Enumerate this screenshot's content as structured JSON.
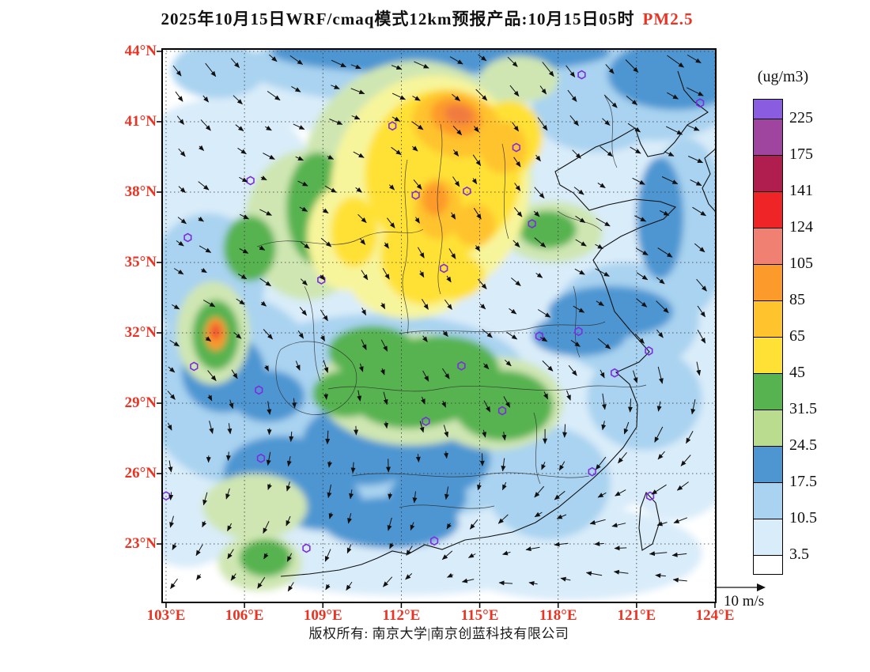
{
  "colors": {
    "accent_red": "#ea3323",
    "station_purple": "#7d2ce0",
    "map_border": "#000000"
  },
  "title": {
    "black_part": "2025年10月15日WRF/cmaq模式12km预报产品:10月15日05时",
    "red_part": "PM2.5"
  },
  "legend": {
    "unit": "(ug/m3)",
    "labels_top_to_bottom": [
      "225",
      "175",
      "141",
      "124",
      "105",
      "85",
      "65",
      "45",
      "31.5",
      "24.5",
      "17.5",
      "10.5",
      "3.5"
    ]
  },
  "axes": {
    "lat": {
      "values": [
        44,
        41,
        38,
        35,
        32,
        29,
        26,
        23
      ],
      "labels": [
        "44°N",
        "41°N",
        "38°N",
        "35°N",
        "32°N",
        "29°N",
        "26°N",
        "23°N"
      ]
    },
    "lon": {
      "values": [
        103,
        106,
        109,
        112,
        115,
        118,
        121,
        124
      ],
      "labels": [
        "103°E",
        "106°E",
        "109°E",
        "112°E",
        "115°E",
        "118°E",
        "121°E",
        "124°E"
      ]
    }
  },
  "wind_ref": {
    "label": "10 m/s"
  },
  "footer": {
    "text": "版权所有: 南京大学|南京创蓝科技有限公司"
  },
  "chart_data": {
    "type": "heatmap",
    "title": "2025年10月15日WRF/cmaq模式12km预报产品:10月15日05时 PM2.5",
    "variable": "PM2.5",
    "unit": "ug/m3",
    "forecast_time": "10月15日05时",
    "x_axis": {
      "label": "longitude",
      "suffix": "°E",
      "ticks_deg": [
        103,
        106,
        109,
        112,
        115,
        118,
        121,
        124
      ],
      "range_deg": [
        102.85,
        124.0
      ]
    },
    "y_axis": {
      "label": "latitude",
      "suffix": "°N",
      "ticks_deg": [
        44,
        41,
        38,
        35,
        32,
        29,
        26,
        23
      ],
      "range_deg": [
        20.5,
        44.1
      ]
    },
    "levels_ugm3": [
      3.5,
      10.5,
      17.5,
      24.5,
      31.5,
      45,
      65,
      85,
      105,
      124,
      141,
      175,
      225
    ],
    "palette_low_to_high": [
      "#ffffff",
      "#d9ecf9",
      "#a9d3f0",
      "#4e96d2",
      "#b9dc8e",
      "#57b34f",
      "#ffe135",
      "#ffc32e",
      "#fd9a2c",
      "#f08071",
      "#ee2426",
      "#b01e50",
      "#a0459f",
      "#8a5ce0"
    ],
    "wind_reference": "10 m/s",
    "legend_position": "right",
    "grid": "dotted graticule every 3 degrees",
    "field_regions": [
      [
        114.0,
        42.6,
        8.5,
        2.6,
        0,
        "#d9ecf9"
      ],
      [
        120.5,
        36.5,
        4.5,
        6.0,
        0,
        "#d9ecf9"
      ],
      [
        122.5,
        31.0,
        3.5,
        7.0,
        0,
        "#d9ecf9"
      ],
      [
        107.0,
        31.5,
        6.0,
        5.5,
        0,
        "#d9ecf9"
      ],
      [
        116.0,
        28.5,
        7.5,
        5.0,
        0,
        "#d9ecf9"
      ],
      [
        112.0,
        23.6,
        8.0,
        2.8,
        0,
        "#d9ecf9"
      ],
      [
        105.0,
        37.5,
        4.0,
        4.5,
        0,
        "#d9ecf9"
      ],
      [
        110.0,
        33.8,
        8.0,
        6.0,
        0,
        "#d9ecf9"
      ],
      [
        123.0,
        40.5,
        2.5,
        3.0,
        0,
        "#d9ecf9"
      ],
      [
        118.5,
        22.6,
        5.0,
        2.0,
        0,
        "#d9ecf9"
      ],
      [
        103.8,
        25.5,
        2.5,
        3.5,
        0,
        "#d9ecf9"
      ],
      [
        106.2,
        41.8,
        1.8,
        1.3,
        0,
        "#d9ecf9"
      ],
      [
        113.5,
        43.4,
        7.5,
        1.7,
        0,
        "#a9d3f0"
      ],
      [
        121.8,
        42.6,
        3.2,
        2.4,
        0,
        "#a9d3f0"
      ],
      [
        105.6,
        29.6,
        3.4,
        4.0,
        0,
        "#a9d3f0"
      ],
      [
        112.8,
        27.3,
        5.0,
        3.2,
        0,
        "#a9d3f0"
      ],
      [
        109.6,
        26.3,
        4.0,
        2.8,
        0,
        "#a9d3f0"
      ],
      [
        120.6,
        32.6,
        2.8,
        2.4,
        0,
        "#a9d3f0"
      ],
      [
        117.6,
        25.6,
        2.4,
        2.4,
        0,
        "#a9d3f0"
      ],
      [
        122.9,
        36.5,
        1.6,
        3.8,
        0,
        "#a9d3f0"
      ],
      [
        104.6,
        34.3,
        2.2,
        2.8,
        0,
        "#a9d3f0"
      ],
      [
        111.2,
        30.4,
        5.5,
        2.4,
        0,
        "#a9d3f0"
      ],
      [
        121.3,
        29.2,
        2.2,
        2.2,
        0,
        "#a9d3f0"
      ],
      [
        105.0,
        43.2,
        1.8,
        1.2,
        0,
        "#a9d3f0"
      ],
      [
        119.5,
        41.5,
        2.5,
        1.8,
        0,
        "#a9d3f0"
      ],
      [
        113.5,
        43.95,
        6.5,
        0.9,
        0,
        "#4e96d2"
      ],
      [
        122.5,
        43.0,
        2.6,
        1.5,
        0,
        "#4e96d2"
      ],
      [
        110.6,
        27.3,
        2.4,
        1.8,
        0,
        "#4e96d2"
      ],
      [
        113.4,
        26.6,
        2.0,
        1.5,
        0,
        "#4e96d2"
      ],
      [
        107.4,
        26.0,
        2.2,
        1.6,
        0,
        "#4e96d2"
      ],
      [
        120.0,
        32.9,
        2.4,
        1.1,
        0,
        "#4e96d2"
      ],
      [
        105.2,
        30.3,
        1.6,
        1.7,
        0,
        "#4e96d2"
      ],
      [
        111.6,
        23.9,
        2.6,
        1.1,
        0,
        "#4e96d2"
      ],
      [
        108.9,
        24.8,
        1.6,
        1.2,
        0,
        "#4e96d2"
      ],
      [
        121.9,
        36.9,
        0.9,
        2.6,
        0,
        "#4e96d2"
      ],
      [
        106.9,
        29.3,
        1.4,
        1.1,
        0,
        "#4e96d2"
      ],
      [
        113.0,
        25.0,
        1.5,
        1.1,
        0,
        "#4e96d2"
      ],
      [
        118.8,
        31.9,
        1.8,
        0.9,
        0,
        "#4e96d2"
      ],
      [
        112.6,
        38.6,
        4.4,
        5.0,
        0,
        "#cfe6b2"
      ],
      [
        112.4,
        29.6,
        3.6,
        2.4,
        0,
        "#cfe6b2"
      ],
      [
        115.6,
        29.0,
        2.6,
        2.0,
        0,
        "#cfe6b2"
      ],
      [
        104.8,
        32.0,
        1.4,
        2.2,
        0,
        "#cfe6b2"
      ],
      [
        106.4,
        24.6,
        2.0,
        1.4,
        0,
        "#cfe6b2"
      ],
      [
        117.8,
        36.3,
        1.9,
        1.3,
        0,
        "#cfe6b2"
      ],
      [
        108.4,
        36.6,
        2.4,
        3.2,
        0,
        "#cfe6b2"
      ],
      [
        106.6,
        22.2,
        1.6,
        1.2,
        0,
        "#cfe6b2"
      ],
      [
        116.5,
        42.8,
        1.5,
        1.0,
        0,
        "#cfe6b2"
      ],
      [
        112.9,
        29.9,
        2.9,
        1.9,
        -12,
        "#57b34f"
      ],
      [
        115.9,
        28.9,
        1.9,
        1.5,
        0,
        "#57b34f"
      ],
      [
        110.9,
        31.2,
        1.7,
        1.1,
        0,
        "#57b34f"
      ],
      [
        104.9,
        31.9,
        0.9,
        1.5,
        0,
        "#57b34f"
      ],
      [
        108.8,
        37.3,
        1.2,
        2.4,
        0,
        "#57b34f"
      ],
      [
        106.2,
        35.6,
        1.0,
        1.4,
        0,
        "#57b34f"
      ],
      [
        117.6,
        36.4,
        1.1,
        0.8,
        0,
        "#57b34f"
      ],
      [
        109.9,
        29.4,
        1.3,
        1.0,
        0,
        "#57b34f"
      ],
      [
        106.8,
        22.4,
        1.0,
        0.8,
        0,
        "#57b34f"
      ],
      [
        113.1,
        38.2,
        3.8,
        4.8,
        8,
        "#f7f59b"
      ],
      [
        112.3,
        34.3,
        2.3,
        1.7,
        0,
        "#f7f59b"
      ],
      [
        109.9,
        36.1,
        1.5,
        2.3,
        0,
        "#f7f59b"
      ],
      [
        113.6,
        38.8,
        3.0,
        3.6,
        8,
        "#ffe135"
      ],
      [
        112.9,
        35.3,
        1.7,
        2.1,
        0,
        "#ffe135"
      ],
      [
        113.9,
        34.4,
        1.3,
        1.0,
        0,
        "#ffe135"
      ],
      [
        110.2,
        36.3,
        0.9,
        1.5,
        0,
        "#ffe135"
      ],
      [
        116.1,
        40.3,
        1.3,
        1.6,
        10,
        "#ffe135"
      ],
      [
        114.1,
        40.9,
        1.7,
        1.4,
        12,
        "#ffc32e"
      ],
      [
        113.4,
        37.3,
        0.9,
        1.3,
        0,
        "#ffc32e"
      ],
      [
        114.8,
        36.6,
        0.8,
        0.9,
        0,
        "#ffc32e"
      ],
      [
        115.9,
        39.9,
        0.9,
        1.1,
        0,
        "#ffc32e"
      ],
      [
        114.1,
        41.2,
        1.0,
        0.8,
        15,
        "#fd9a2c"
      ],
      [
        113.3,
        37.7,
        0.5,
        0.7,
        0,
        "#fd9a2c"
      ],
      [
        104.9,
        31.95,
        0.4,
        0.7,
        0,
        "#fd9a2c"
      ],
      [
        114.2,
        41.3,
        0.55,
        0.4,
        15,
        "#f07a40"
      ],
      [
        104.9,
        32.05,
        0.2,
        0.35,
        0,
        "#ee4a30"
      ]
    ],
    "stations_lonlat": [
      [
        111.66,
        40.82
      ],
      [
        116.4,
        39.9
      ],
      [
        114.51,
        38.04
      ],
      [
        112.55,
        37.87
      ],
      [
        106.23,
        38.49
      ],
      [
        103.83,
        36.06
      ],
      [
        108.94,
        34.26
      ],
      [
        117.0,
        36.65
      ],
      [
        113.63,
        34.75
      ],
      [
        117.28,
        31.86
      ],
      [
        118.78,
        32.06
      ],
      [
        121.47,
        31.23
      ],
      [
        120.16,
        30.29
      ],
      [
        114.3,
        30.59
      ],
      [
        104.07,
        30.57
      ],
      [
        106.55,
        29.56
      ],
      [
        112.94,
        28.23
      ],
      [
        115.86,
        28.68
      ],
      [
        106.63,
        26.65
      ],
      [
        119.3,
        26.08
      ],
      [
        121.52,
        25.04
      ],
      [
        113.26,
        23.13
      ],
      [
        108.37,
        22.82
      ],
      [
        103.0,
        25.05
      ],
      [
        123.43,
        41.8
      ],
      [
        118.9,
        43.0
      ]
    ],
    "wind_field": {
      "grid": 18,
      "spacing_px": 38.6,
      "style": "northwesterlies in the north turning to northeasterly trades over the southern sea"
    }
  }
}
